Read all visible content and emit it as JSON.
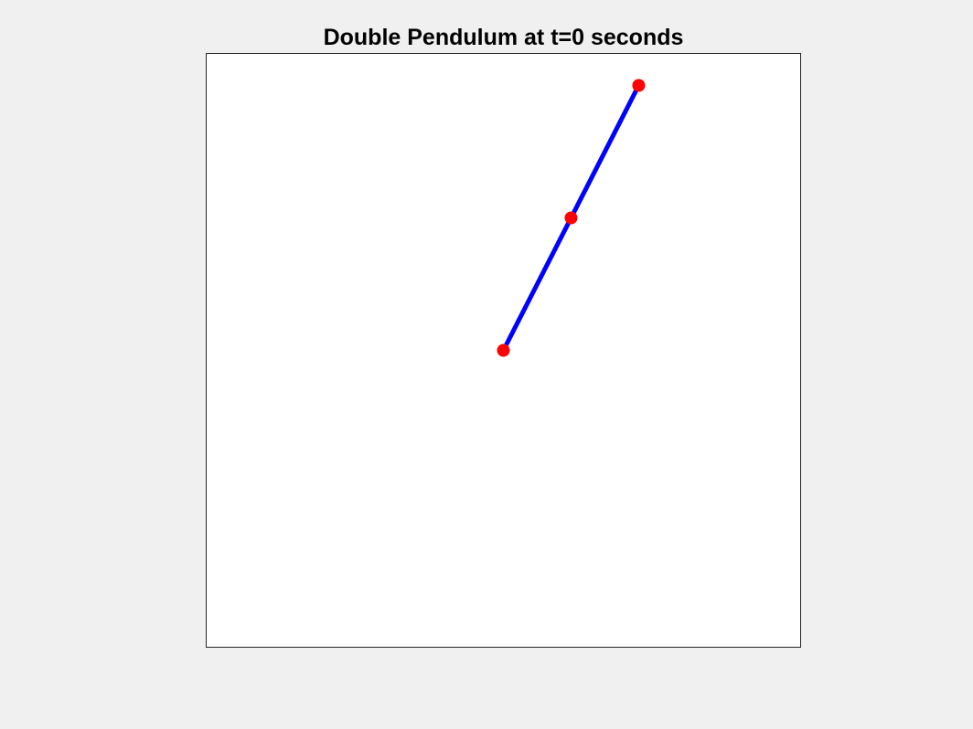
{
  "chart_data": {
    "type": "line",
    "title": "Double Pendulum at t=0 seconds",
    "xlabel": "",
    "ylabel": "",
    "xlim": [
      -2.2,
      2.2
    ],
    "ylim": [
      -2.2,
      2.2
    ],
    "grid": false,
    "axis_ticks": "off",
    "series": [
      {
        "role": "rods",
        "x": [
          0,
          0.5,
          1.0
        ],
        "y": [
          0,
          0.98,
          1.96
        ],
        "color": "#0000ff"
      },
      {
        "role": "joints",
        "x": [
          0,
          0.5,
          1.0
        ],
        "y": [
          0,
          0.98,
          1.96
        ],
        "color": "#ff0000"
      }
    ]
  },
  "colors": {
    "background": "#f0f0f0",
    "axes_background": "#ffffff",
    "axes_border": "#262626",
    "rod": "#0000ff",
    "joint": "#ff0000"
  }
}
